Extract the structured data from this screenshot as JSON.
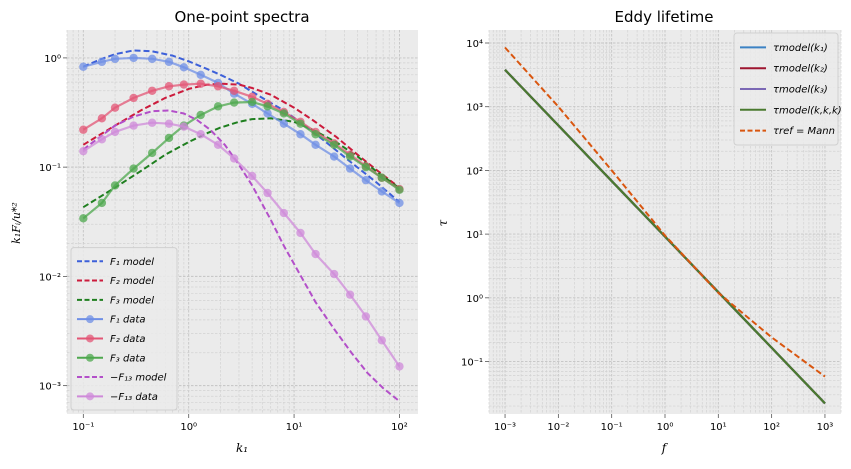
{
  "chart_data": [
    {
      "type": "line",
      "title": "One-point spectra",
      "xlabel": "k₁",
      "ylabel": "k₁Fᵢ/u*²",
      "xscale": "log",
      "yscale": "log",
      "xlim": [
        0.07,
        150
      ],
      "ylim": [
        0.00055,
        1.8
      ],
      "grid": true,
      "legend_loc": "lower left",
      "xticks": [
        {
          "v": 0.1,
          "label": "10⁻¹"
        },
        {
          "v": 1,
          "label": "10⁰"
        },
        {
          "v": 10,
          "label": "10¹"
        },
        {
          "v": 100,
          "label": "10²"
        }
      ],
      "yticks": [
        {
          "v": 0.001,
          "label": "10⁻³"
        },
        {
          "v": 0.01,
          "label": "10⁻²"
        },
        {
          "v": 0.1,
          "label": "10⁻¹"
        },
        {
          "v": 1,
          "label": "10⁰"
        }
      ],
      "series": [
        {
          "name": "F₁ model",
          "color": "#3d60d9",
          "style": "dashed",
          "x": [
            0.1,
            0.15,
            0.2,
            0.3,
            0.45,
            0.7,
            1,
            1.5,
            2,
            3,
            5,
            8,
            12,
            20,
            35,
            60,
            100
          ],
          "y": [
            0.83,
            0.98,
            1.08,
            1.17,
            1.15,
            1.05,
            0.93,
            0.79,
            0.7,
            0.58,
            0.43,
            0.33,
            0.25,
            0.17,
            0.11,
            0.073,
            0.048
          ]
        },
        {
          "name": "F₂ model",
          "color": "#cc1b3c",
          "style": "dashed",
          "x": [
            0.1,
            0.2,
            0.35,
            0.6,
            1,
            1.5,
            2,
            3,
            4,
            6,
            10,
            15,
            25,
            40,
            60,
            100
          ],
          "y": [
            0.16,
            0.24,
            0.33,
            0.43,
            0.52,
            0.57,
            0.58,
            0.57,
            0.53,
            0.46,
            0.35,
            0.27,
            0.19,
            0.13,
            0.095,
            0.065
          ]
        },
        {
          "name": "F₃ model",
          "color": "#1f7f1f",
          "style": "dashed",
          "x": [
            0.1,
            0.2,
            0.35,
            0.6,
            1,
            1.5,
            2,
            3,
            4,
            6,
            10,
            15,
            25,
            40,
            60,
            100
          ],
          "y": [
            0.043,
            0.065,
            0.092,
            0.13,
            0.17,
            0.205,
            0.23,
            0.26,
            0.275,
            0.28,
            0.26,
            0.22,
            0.17,
            0.125,
            0.092,
            0.064
          ]
        },
        {
          "name": "F₁ data",
          "color": "#6f8fe6",
          "style": "solid",
          "marker": "o",
          "x": [
            0.1,
            0.15,
            0.2,
            0.3,
            0.45,
            0.65,
            0.9,
            1.3,
            1.9,
            2.7,
            4,
            5.6,
            8,
            11.5,
            16,
            24,
            34,
            48,
            68,
            100
          ],
          "y": [
            0.83,
            0.92,
            0.98,
            1.0,
            0.98,
            0.92,
            0.82,
            0.7,
            0.59,
            0.47,
            0.38,
            0.31,
            0.25,
            0.2,
            0.16,
            0.125,
            0.097,
            0.076,
            0.06,
            0.047
          ]
        },
        {
          "name": "F₂ data",
          "color": "#e35575",
          "style": "solid",
          "marker": "o",
          "x": [
            0.1,
            0.15,
            0.2,
            0.3,
            0.45,
            0.65,
            0.9,
            1.3,
            1.9,
            2.7,
            4,
            5.6,
            8,
            11.5,
            16,
            24,
            34,
            48,
            68,
            100
          ],
          "y": [
            0.22,
            0.28,
            0.35,
            0.43,
            0.5,
            0.55,
            0.57,
            0.58,
            0.55,
            0.5,
            0.44,
            0.38,
            0.32,
            0.26,
            0.21,
            0.165,
            0.13,
            0.102,
            0.08,
            0.063
          ]
        },
        {
          "name": "F₃ data",
          "color": "#4ea84e",
          "style": "solid",
          "marker": "o",
          "x": [
            0.1,
            0.15,
            0.2,
            0.3,
            0.45,
            0.65,
            0.9,
            1.3,
            1.9,
            2.7,
            4,
            5.6,
            8,
            11.5,
            16,
            24,
            34,
            48,
            68,
            100
          ],
          "y": [
            0.034,
            0.047,
            0.068,
            0.097,
            0.135,
            0.185,
            0.24,
            0.3,
            0.36,
            0.39,
            0.395,
            0.36,
            0.31,
            0.25,
            0.2,
            0.16,
            0.125,
            0.1,
            0.08,
            0.062
          ]
        },
        {
          "name": "−F₁₃ model",
          "color": "#b34fc9",
          "style": "dashed",
          "x": [
            0.1,
            0.15,
            0.2,
            0.3,
            0.45,
            0.65,
            0.9,
            1.2,
            1.6,
            2.2,
            3,
            4,
            6,
            8,
            12,
            16,
            24,
            35,
            50,
            70,
            100
          ],
          "y": [
            0.145,
            0.195,
            0.24,
            0.29,
            0.325,
            0.33,
            0.31,
            0.27,
            0.22,
            0.16,
            0.105,
            0.068,
            0.033,
            0.019,
            0.0095,
            0.0058,
            0.0033,
            0.002,
            0.0013,
            0.00095,
            0.00072
          ]
        },
        {
          "name": "−F₁₃ data",
          "color": "#cf8ad9",
          "style": "solid",
          "marker": "o",
          "x": [
            0.1,
            0.15,
            0.2,
            0.3,
            0.45,
            0.65,
            0.9,
            1.3,
            1.9,
            2.7,
            4,
            5.6,
            8,
            11.5,
            16,
            24,
            34,
            48,
            68,
            100
          ],
          "y": [
            0.14,
            0.18,
            0.21,
            0.24,
            0.255,
            0.25,
            0.235,
            0.2,
            0.16,
            0.12,
            0.083,
            0.058,
            0.038,
            0.025,
            0.016,
            0.0105,
            0.0068,
            0.0043,
            0.0026,
            0.0015
          ]
        }
      ]
    },
    {
      "type": "line",
      "title": "Eddy lifetime",
      "xlabel": "f",
      "ylabel": "τ",
      "xscale": "log",
      "yscale": "log",
      "xlim": [
        0.0005,
        2000
      ],
      "ylim": [
        0.015,
        16000
      ],
      "grid": true,
      "legend_loc": "upper right",
      "xticks": [
        {
          "v": 0.001,
          "label": "10⁻³"
        },
        {
          "v": 0.01,
          "label": "10⁻²"
        },
        {
          "v": 0.1,
          "label": "10⁻¹"
        },
        {
          "v": 1,
          "label": "10⁰"
        },
        {
          "v": 10,
          "label": "10¹"
        },
        {
          "v": 100,
          "label": "10²"
        },
        {
          "v": 1000,
          "label": "10³"
        }
      ],
      "yticks": [
        {
          "v": 0.1,
          "label": "10⁻¹"
        },
        {
          "v": 1,
          "label": "10⁰"
        },
        {
          "v": 10,
          "label": "10¹"
        },
        {
          "v": 100,
          "label": "10²"
        },
        {
          "v": 1000,
          "label": "10³"
        },
        {
          "v": 10000,
          "label": "10⁴"
        }
      ],
      "series": [
        {
          "name": "τmodel(k₁)",
          "color": "#3b82c4",
          "style": "solid",
          "x": [
            0.001,
            1000
          ],
          "y": [
            3800,
            0.022
          ]
        },
        {
          "name": "τmodel(k₂)",
          "color": "#9e1530",
          "style": "solid",
          "x": [
            0.001,
            1000
          ],
          "y": [
            3800,
            0.022
          ]
        },
        {
          "name": "τmodel(k₃)",
          "color": "#7b68b5",
          "style": "solid",
          "x": [
            0.001,
            1000
          ],
          "y": [
            3800,
            0.022
          ]
        },
        {
          "name": "τmodel(k,k,k)",
          "color": "#4a7a2f",
          "style": "solid",
          "x": [
            0.001,
            1000
          ],
          "y": [
            3800,
            0.022
          ]
        },
        {
          "name": "τref = Mann",
          "color": "#d9560f",
          "style": "dashed",
          "x": [
            0.001,
            0.01,
            0.1,
            1,
            10,
            100,
            1000
          ],
          "y": [
            8500,
            1000,
            100,
            9.5,
            1.2,
            0.24,
            0.058
          ]
        }
      ]
    }
  ]
}
